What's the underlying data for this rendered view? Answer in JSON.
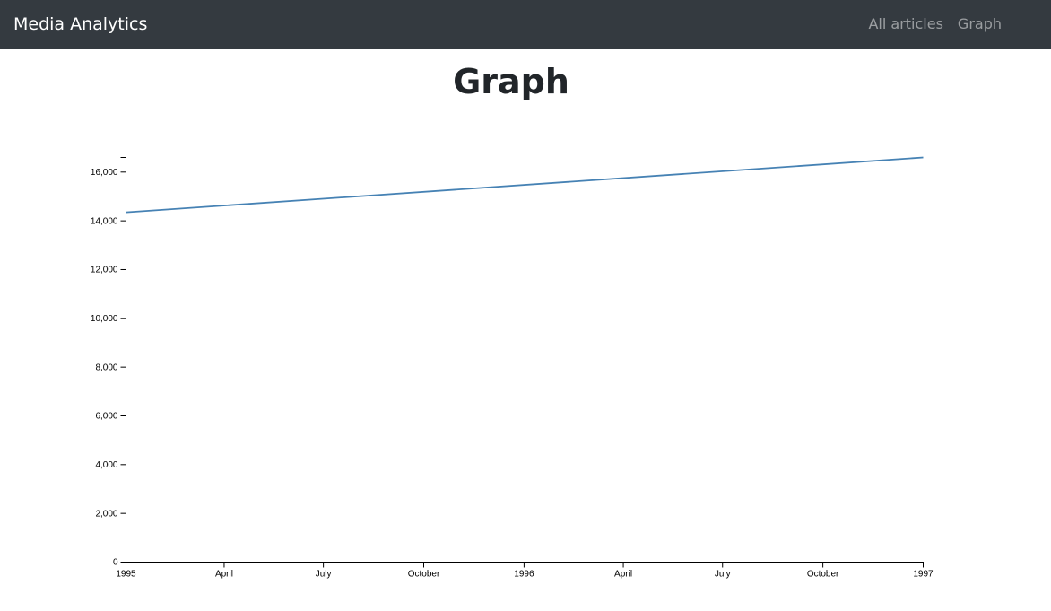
{
  "navbar": {
    "brand": "Media Analytics",
    "links": [
      {
        "label": "All articles"
      },
      {
        "label": "Graph"
      }
    ]
  },
  "page": {
    "title": "Graph"
  },
  "colors": {
    "navbar_bg": "#343a40",
    "line": "#4682b4",
    "nav_link": "rgba(255,255,255,0.5)"
  },
  "chart_data": {
    "type": "line",
    "title": "",
    "xlabel": "",
    "ylabel": "",
    "x_type": "date",
    "xlim": [
      "1995-01-01",
      "1997-01-01"
    ],
    "ylim": [
      0,
      16600
    ],
    "x_ticks": [
      {
        "date": "1995-01-01",
        "label": "1995"
      },
      {
        "date": "1995-04-01",
        "label": "April"
      },
      {
        "date": "1995-07-01",
        "label": "July"
      },
      {
        "date": "1995-10-01",
        "label": "October"
      },
      {
        "date": "1996-01-01",
        "label": "1996"
      },
      {
        "date": "1996-04-01",
        "label": "April"
      },
      {
        "date": "1996-07-01",
        "label": "July"
      },
      {
        "date": "1996-10-01",
        "label": "October"
      },
      {
        "date": "1997-01-01",
        "label": "1997"
      }
    ],
    "y_ticks": [
      0,
      2000,
      4000,
      6000,
      8000,
      10000,
      12000,
      14000,
      16000
    ],
    "y_tick_labels": [
      "0",
      "2,000",
      "4,000",
      "6,000",
      "8,000",
      "10,000",
      "12,000",
      "14,000",
      "16,000"
    ],
    "grid": false,
    "series": [
      {
        "x": [
          "1995-01-01",
          "1997-01-01"
        ],
        "values": [
          14350,
          16600
        ]
      }
    ]
  }
}
